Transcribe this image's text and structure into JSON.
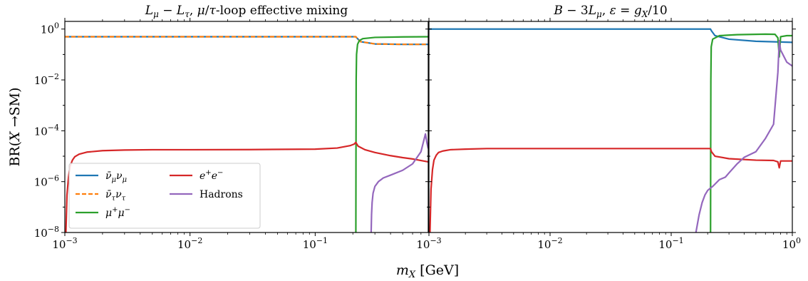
{
  "chart_data": [
    {
      "type": "line",
      "title": "L_μ − L_τ, μ/τ-loop effective mixing",
      "xlabel": "m_X [GeV]",
      "ylabel": "BR(X → SM)",
      "xscale": "log",
      "yscale": "log",
      "xlim": [
        0.001,
        0.8
      ],
      "ylim": [
        1e-08,
        2
      ],
      "x_ticks": [
        "10^-3",
        "10^-2",
        "10^-1"
      ],
      "y_ticks": [
        "10^0",
        "10^-2",
        "10^-4",
        "10^-6",
        "10^-8"
      ],
      "legend_position": "lower-left",
      "series": [
        {
          "name": "ν̄_μ ν_μ",
          "color": "#1f77b4",
          "style": "solid",
          "x": [
            0.001,
            0.2,
            0.211,
            0.215,
            0.23,
            0.3,
            0.5,
            0.8
          ],
          "y": [
            0.5,
            0.5,
            0.5,
            0.45,
            0.32,
            0.26,
            0.25,
            0.25
          ]
        },
        {
          "name": "ν̄_τ ν_τ",
          "color": "#ff7f0e",
          "style": "dashed",
          "x": [
            0.001,
            0.2,
            0.211,
            0.215,
            0.23,
            0.3,
            0.5,
            0.8
          ],
          "y": [
            0.5,
            0.5,
            0.5,
            0.45,
            0.32,
            0.26,
            0.25,
            0.25
          ]
        },
        {
          "name": "μ⁺μ⁻",
          "color": "#2ca02c",
          "style": "solid",
          "x": [
            0.2113,
            0.2118,
            0.2125,
            0.214,
            0.218,
            0.225,
            0.24,
            0.3,
            0.5,
            0.8
          ],
          "y": [
            1e-08,
            1e-05,
            0.01,
            0.1,
            0.25,
            0.35,
            0.42,
            0.47,
            0.49,
            0.5
          ]
        },
        {
          "name": "e⁺e⁻",
          "color": "#d62728",
          "style": "solid",
          "x": [
            0.00102,
            0.00104,
            0.00107,
            0.0011,
            0.00115,
            0.0012,
            0.0013,
            0.0015,
            0.002,
            0.003,
            0.005,
            0.01,
            0.03,
            0.1,
            0.15,
            0.19,
            0.205,
            0.211,
            0.22,
            0.25,
            0.3,
            0.4,
            0.5,
            0.6,
            0.8
          ],
          "y": [
            1e-08,
            3e-07,
            1.5e-06,
            4e-06,
            7e-06,
            9.5e-06,
            1.2e-05,
            1.45e-05,
            1.65e-05,
            1.75e-05,
            1.8e-05,
            1.8e-05,
            1.82e-05,
            1.9e-05,
            2.1e-05,
            2.6e-05,
            3e-05,
            3.5e-05,
            2.5e-05,
            1.8e-05,
            1.4e-05,
            1.05e-05,
            8.8e-06,
            7.8e-06,
            6e-06
          ]
        },
        {
          "name": "Hadrons",
          "color": "#9467bd",
          "style": "solid",
          "x": [
            0.28,
            0.282,
            0.285,
            0.29,
            0.3,
            0.32,
            0.35,
            0.4,
            0.5,
            0.6,
            0.7,
            0.76,
            0.78,
            0.8
          ],
          "y": [
            1e-08,
            5e-08,
            1.5e-07,
            3.5e-07,
            6.5e-07,
            1e-06,
            1.4e-06,
            1.8e-06,
            2.8e-06,
            5e-06,
            1.5e-05,
            7.5e-05,
            3.5e-05,
            2e-05
          ]
        }
      ]
    },
    {
      "type": "line",
      "title": "B − 3L_μ, ε = g_X/10",
      "xlabel": "m_X [GeV]",
      "xscale": "log",
      "yscale": "log",
      "xlim": [
        0.001,
        1
      ],
      "ylim": [
        1e-08,
        2
      ],
      "x_ticks": [
        "10^-3",
        "10^-2",
        "10^-1",
        "10^0"
      ],
      "series": [
        {
          "name": "ν̄_μ ν_μ",
          "color": "#1f77b4",
          "style": "solid",
          "x": [
            0.001,
            0.2,
            0.211,
            0.215,
            0.23,
            0.3,
            0.5,
            0.8,
            1.0
          ],
          "y": [
            1.0,
            1.0,
            1.0,
            0.85,
            0.55,
            0.4,
            0.33,
            0.31,
            0.3
          ]
        },
        {
          "name": "μ⁺μ⁻",
          "color": "#2ca02c",
          "style": "solid",
          "x": [
            0.2113,
            0.2118,
            0.2125,
            0.214,
            0.22,
            0.25,
            0.35,
            0.6,
            0.72,
            0.76,
            0.78,
            0.8,
            0.9,
            1.0
          ],
          "y": [
            1e-08,
            1e-05,
            0.01,
            0.2,
            0.4,
            0.55,
            0.6,
            0.63,
            0.62,
            0.45,
            0.08,
            0.5,
            0.55,
            0.55
          ]
        },
        {
          "name": "e⁺e⁻",
          "color": "#d62728",
          "style": "solid",
          "x": [
            0.00102,
            0.00104,
            0.00107,
            0.0011,
            0.00115,
            0.0012,
            0.0013,
            0.0015,
            0.002,
            0.003,
            0.005,
            0.01,
            0.05,
            0.1,
            0.15,
            0.2,
            0.211,
            0.215,
            0.23,
            0.3,
            0.5,
            0.7,
            0.76,
            0.78,
            0.8,
            0.9,
            1.0
          ],
          "y": [
            1e-08,
            5e-07,
            3e-06,
            7e-06,
            1.1e-05,
            1.4e-05,
            1.6e-05,
            1.8e-05,
            1.9e-05,
            2e-05,
            2e-05,
            2e-05,
            2e-05,
            2e-05,
            2e-05,
            2e-05,
            2e-05,
            1.5e-05,
            1e-05,
            8e-06,
            7e-06,
            6.8e-06,
            6e-06,
            3.5e-06,
            6.5e-06,
            6.5e-06,
            6.5e-06
          ]
        },
        {
          "name": "Hadrons",
          "color": "#9467bd",
          "style": "solid",
          "x": [
            0.16,
            0.17,
            0.18,
            0.19,
            0.2,
            0.21,
            0.22,
            0.23,
            0.25,
            0.28,
            0.3,
            0.35,
            0.4,
            0.5,
            0.6,
            0.7,
            0.76,
            0.78,
            0.8,
            0.9,
            1.0
          ],
          "y": [
            1e-08,
            5e-08,
            1.5e-07,
            3e-07,
            4.5e-07,
            5.5e-07,
            6.5e-07,
            8e-07,
            1.2e-06,
            1.5e-06,
            2.2e-06,
            5e-06,
            9e-06,
            1.5e-05,
            5e-05,
            0.00018,
            0.02,
            0.35,
            0.15,
            0.05,
            0.035
          ]
        }
      ]
    }
  ]
}
